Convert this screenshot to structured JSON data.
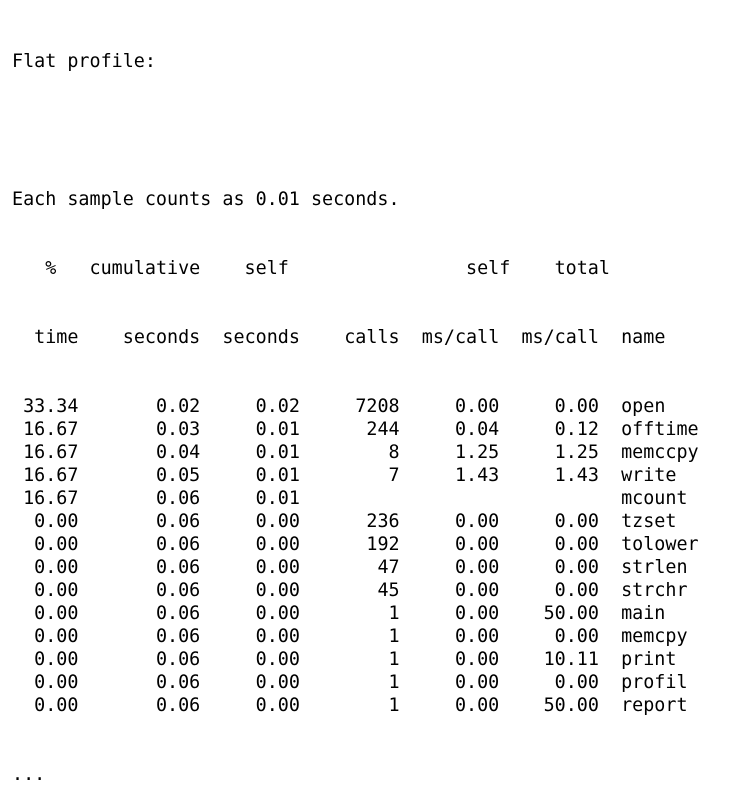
{
  "title": "Flat profile:",
  "note": "Each sample counts as 0.01 seconds.",
  "header_row1": [
    "%",
    "cumulative",
    "self",
    "",
    "self",
    "total",
    ""
  ],
  "header_row2": [
    "time",
    "seconds",
    "seconds",
    "calls",
    "ms/call",
    "ms/call",
    "name"
  ],
  "rows": [
    [
      "33.34",
      "0.02",
      "0.02",
      "7208",
      "0.00",
      "0.00",
      "open"
    ],
    [
      "16.67",
      "0.03",
      "0.01",
      "244",
      "0.04",
      "0.12",
      "offtime"
    ],
    [
      "16.67",
      "0.04",
      "0.01",
      "8",
      "1.25",
      "1.25",
      "memccpy"
    ],
    [
      "16.67",
      "0.05",
      "0.01",
      "7",
      "1.43",
      "1.43",
      "write"
    ],
    [
      "16.67",
      "0.06",
      "0.01",
      "",
      "",
      "",
      "mcount"
    ],
    [
      "0.00",
      "0.06",
      "0.00",
      "236",
      "0.00",
      "0.00",
      "tzset"
    ],
    [
      "0.00",
      "0.06",
      "0.00",
      "192",
      "0.00",
      "0.00",
      "tolower"
    ],
    [
      "0.00",
      "0.06",
      "0.00",
      "47",
      "0.00",
      "0.00",
      "strlen"
    ],
    [
      "0.00",
      "0.06",
      "0.00",
      "45",
      "0.00",
      "0.00",
      "strchr"
    ],
    [
      "0.00",
      "0.06",
      "0.00",
      "1",
      "0.00",
      "50.00",
      "main"
    ],
    [
      "0.00",
      "0.06",
      "0.00",
      "1",
      "0.00",
      "0.00",
      "memcpy"
    ],
    [
      "0.00",
      "0.06",
      "0.00",
      "1",
      "0.00",
      "10.11",
      "print"
    ],
    [
      "0.00",
      "0.06",
      "0.00",
      "1",
      "0.00",
      "0.00",
      "profil"
    ],
    [
      "0.00",
      "0.06",
      "0.00",
      "1",
      "0.00",
      "50.00",
      "report"
    ]
  ],
  "ellipsis": "..."
}
